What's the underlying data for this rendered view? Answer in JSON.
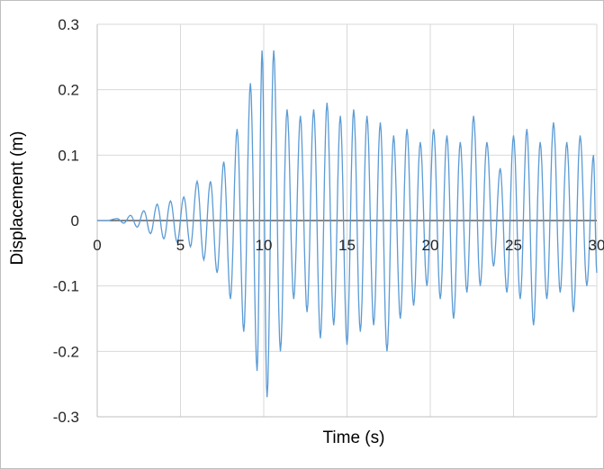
{
  "chart_data": {
    "type": "line",
    "title": "",
    "xlabel": "Time (s)",
    "ylabel": "Displacement (m)",
    "xlim": [
      0,
      30
    ],
    "ylim": [
      -0.3,
      0.3
    ],
    "x_ticks": [
      0,
      5,
      10,
      15,
      20,
      25,
      30
    ],
    "x_tick_labels": [
      "0",
      "5",
      "10",
      "15",
      "20",
      "25",
      "30"
    ],
    "y_ticks": [
      -0.3,
      -0.2,
      -0.1,
      0,
      0.1,
      0.2,
      0.3
    ],
    "y_tick_labels": [
      "-0.3",
      "-0.2",
      "-0.1",
      "0",
      "0.1",
      "0.2",
      "0.3"
    ],
    "grid": true,
    "legend": "none",
    "series_color": "#5b9bd5",
    "series": [
      {
        "x": [
          0.6,
          1.2,
          1.6,
          2.0,
          2.4,
          2.8,
          3.2,
          3.6,
          4.0,
          4.4,
          4.8,
          5.2,
          5.6,
          6.0,
          6.4,
          6.8,
          7.2,
          7.6,
          8.0,
          8.4,
          8.8,
          9.2,
          9.6,
          9.9,
          10.2,
          10.6,
          11.0,
          11.4,
          11.8,
          12.2,
          12.6,
          13.0,
          13.4,
          13.8,
          14.2,
          14.6,
          15.0,
          15.4,
          15.8,
          16.2,
          16.6,
          17.0,
          17.4,
          17.8,
          18.2,
          18.6,
          19.0,
          19.4,
          19.8,
          20.2,
          20.6,
          21.0,
          21.4,
          21.8,
          22.2,
          22.6,
          23.0,
          23.4,
          23.8,
          24.2,
          24.6,
          25.0,
          25.4,
          25.8,
          26.2,
          26.6,
          27.0,
          27.4,
          27.8,
          28.2,
          28.6,
          29.0,
          29.4,
          29.8
        ],
        "y": [
          0.0,
          0.003,
          -0.004,
          0.008,
          -0.01,
          0.015,
          -0.02,
          0.025,
          -0.028,
          0.03,
          -0.033,
          0.036,
          -0.04,
          0.06,
          -0.06,
          0.06,
          -0.08,
          0.09,
          -0.12,
          0.14,
          -0.17,
          0.21,
          -0.23,
          0.26,
          -0.27,
          0.26,
          -0.2,
          0.17,
          -0.12,
          0.16,
          -0.14,
          0.17,
          -0.18,
          0.18,
          -0.16,
          0.16,
          -0.19,
          0.17,
          -0.17,
          0.16,
          -0.16,
          0.15,
          -0.2,
          0.13,
          -0.15,
          0.14,
          -0.13,
          0.12,
          -0.1,
          0.14,
          -0.12,
          0.13,
          -0.15,
          0.12,
          -0.11,
          0.16,
          -0.1,
          0.12,
          -0.07,
          0.08,
          -0.11,
          0.13,
          -0.12,
          0.14,
          -0.16,
          0.12,
          -0.12,
          0.15,
          -0.11,
          0.12,
          -0.14,
          0.13,
          -0.1,
          0.1
        ]
      }
    ]
  }
}
